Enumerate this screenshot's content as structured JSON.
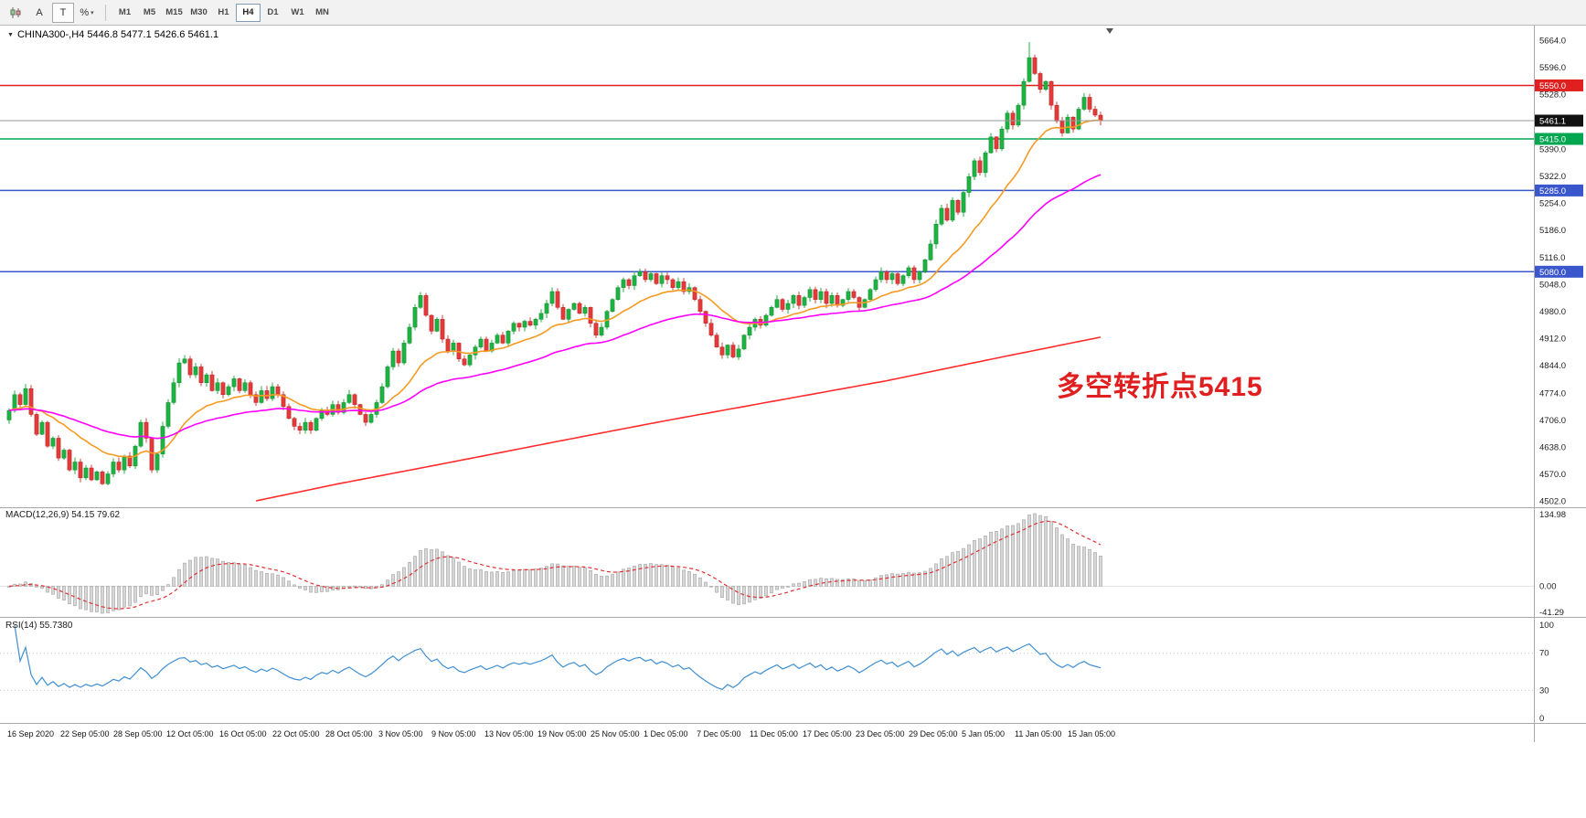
{
  "toolbar": {
    "a_label": "A",
    "t_label": "T",
    "percent_label": "%",
    "timeframes": [
      "M1",
      "M5",
      "M15",
      "M30",
      "H1",
      "H4",
      "D1",
      "W1",
      "MN"
    ],
    "selected_timeframe": "H4"
  },
  "chart": {
    "symbol_line": "CHINA300-,H4 5446.8 5477.1 5426.6 5461.1",
    "annotation": {
      "text": "多空转折点5415",
      "color": "#e02020"
    }
  },
  "indicators": {
    "macd_label": "MACD(12,26,9) 54.15 79.62",
    "rsi_label": "RSI(14) 55.7380"
  },
  "chart_data": {
    "type": "candlestick",
    "symbol": "CHINA300-",
    "timeframe": "H4",
    "ohlc_display": {
      "open": 5446.8,
      "high": 5477.1,
      "low": 5426.6,
      "close": 5461.1
    },
    "ylim": [
      4502,
      5664
    ],
    "price_ticks": [
      5664.0,
      5596.0,
      5528.0,
      5390.0,
      5322.0,
      5254.0,
      5186.0,
      5116.0,
      5048.0,
      4980.0,
      4912.0,
      4844.0,
      4774.0,
      4706.0,
      4638.0,
      4570.0,
      4502.0
    ],
    "current_price": 5461.1,
    "level_lines": [
      {
        "price": 5550.0,
        "color": "#e02020"
      },
      {
        "price": 5415.0,
        "color": "#00a650"
      },
      {
        "price": 5285.0,
        "color": "#3a56cc"
      },
      {
        "price": 5080.0,
        "color": "#3a56cc"
      }
    ],
    "up_color": "#1fb141",
    "down_color": "#e23b3b",
    "open_first": 4706,
    "wick_amp": 12,
    "spike_high": {
      "index": 186,
      "high": 5659
    },
    "closes": [
      4730,
      4770,
      4745,
      4785,
      4720,
      4670,
      4700,
      4640,
      4660,
      4610,
      4630,
      4580,
      4600,
      4560,
      4585,
      4555,
      4575,
      4545,
      4570,
      4600,
      4580,
      4615,
      4590,
      4640,
      4700,
      4660,
      4580,
      4620,
      4690,
      4750,
      4800,
      4850,
      4860,
      4820,
      4840,
      4800,
      4820,
      4780,
      4800,
      4770,
      4790,
      4810,
      4780,
      4800,
      4770,
      4750,
      4780,
      4760,
      4790,
      4770,
      4740,
      4710,
      4690,
      4680,
      4700,
      4680,
      4710,
      4730,
      4720,
      4745,
      4725,
      4750,
      4770,
      4745,
      4720,
      4700,
      4720,
      4750,
      4790,
      4840,
      4880,
      4850,
      4900,
      4940,
      4990,
      5020,
      4970,
      4930,
      4960,
      4910,
      4880,
      4900,
      4860,
      4845,
      4870,
      4890,
      4910,
      4880,
      4900,
      4920,
      4900,
      4930,
      4950,
      4940,
      4955,
      4945,
      4960,
      4975,
      5000,
      5030,
      4990,
      4960,
      4985,
      5000,
      4975,
      4990,
      4950,
      4920,
      4940,
      4980,
      5010,
      5040,
      5060,
      5045,
      5070,
      5080,
      5060,
      5075,
      5050,
      5070,
      5060,
      5040,
      5055,
      5030,
      5040,
      5010,
      4980,
      4950,
      4920,
      4890,
      4870,
      4895,
      4865,
      4885,
      4920,
      4940,
      4960,
      4945,
      4970,
      4990,
      5010,
      4985,
      5000,
      5020,
      4995,
      5015,
      5035,
      5010,
      5030,
      5000,
      5020,
      4995,
      5010,
      5030,
      5015,
      4990,
      5010,
      5035,
      5060,
      5080,
      5060,
      5075,
      5050,
      5070,
      5090,
      5060,
      5080,
      5110,
      5150,
      5200,
      5240,
      5210,
      5260,
      5230,
      5280,
      5320,
      5360,
      5330,
      5380,
      5420,
      5390,
      5440,
      5480,
      5450,
      5500,
      5560,
      5620,
      5580,
      5540,
      5560,
      5500,
      5460,
      5430,
      5470,
      5440,
      5490,
      5520,
      5490,
      5475,
      5461.1
    ],
    "moving_averages": {
      "fast": {
        "period": 18,
        "color": "#f59a23"
      },
      "mid": {
        "period": 50,
        "color": "#ff00ff"
      },
      "slow": {
        "color": "#ff2a2a",
        "anchors": [
          [
            45,
            4502
          ],
          [
            60,
            4545
          ],
          [
            80,
            4598
          ],
          [
            100,
            4652
          ],
          [
            120,
            4705
          ],
          [
            140,
            4755
          ],
          [
            160,
            4805
          ],
          [
            180,
            4862
          ],
          [
            199,
            4915
          ]
        ]
      }
    },
    "macd": {
      "fast": 12,
      "slow": 26,
      "signal": 9,
      "value": 54.15,
      "signal_value": 79.62,
      "axis": [
        134.98,
        0.0,
        -41.29
      ],
      "hist_color": "#d7d7d7",
      "hist_stroke": "#ababab",
      "signal_color": "#e03030"
    },
    "rsi": {
      "period": 14,
      "value": 55.738,
      "axis": [
        100,
        70,
        30,
        0
      ],
      "levels": [
        70,
        30
      ],
      "color": "#3f8fd2"
    },
    "time_labels": [
      "16 Sep 2020",
      "22 Sep 05:00",
      "28 Sep 05:00",
      "12 Oct 05:00",
      "16 Oct 05:00",
      "22 Oct 05:00",
      "28 Oct 05:00",
      "3 Nov 05:00",
      "9 Nov 05:00",
      "13 Nov 05:00",
      "19 Nov 05:00",
      "25 Nov 05:00",
      "1 Dec 05:00",
      "7 Dec 05:00",
      "11 Dec 05:00",
      "17 Dec 05:00",
      "23 Dec 05:00",
      "29 Dec 05:00",
      "5 Jan 05:00",
      "11 Jan 05:00",
      "15 Jan 05:00"
    ]
  }
}
